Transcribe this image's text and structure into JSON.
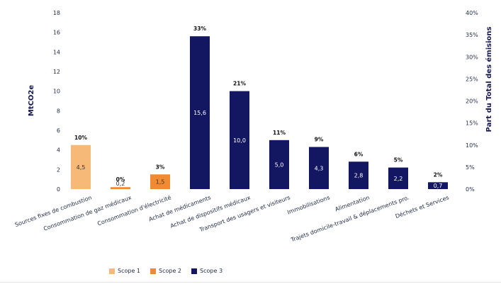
{
  "chart_data": {
    "type": "bar",
    "categories": [
      "Sources fixes de combustion",
      "Consommation de gaz médicaux",
      "Consommation d'électricité",
      "Achat de médicaments",
      "Achat de dispositifs médicaux",
      "Transport des usagers et visiteurs",
      "Immobilisations",
      "Alimentation",
      "Trajets domicile-travail & déplacements pro.",
      "Déchets et Services"
    ],
    "values": [
      4.5,
      0.2,
      1.5,
      15.6,
      10.0,
      5.0,
      4.3,
      2.8,
      2.2,
      0.7
    ],
    "value_labels": [
      "4,5",
      "0,2",
      "1,5",
      "15,6",
      "10,0",
      "5,0",
      "4,3",
      "2,8",
      "2,2",
      "0,7"
    ],
    "percent_labels": [
      "10%",
      "0%",
      "3%",
      "33%",
      "21%",
      "11%",
      "9%",
      "6%",
      "5%",
      "2%"
    ],
    "scopes": [
      "Scope 1",
      "Scope 2",
      "Scope 2",
      "Scope 3",
      "Scope 3",
      "Scope 3",
      "Scope 3",
      "Scope 3",
      "Scope 3",
      "Scope 3"
    ],
    "ylabel": "MtCO2e",
    "y2label": "Part du Total des émisions",
    "ylim": [
      0,
      18
    ],
    "yticks": [
      "0",
      "2",
      "4",
      "6",
      "8",
      "10",
      "12",
      "14",
      "16",
      "18"
    ],
    "y2lim": [
      0,
      40
    ],
    "y2ticks": [
      "0%",
      "5%",
      "10%",
      "15%",
      "20%",
      "25%",
      "30%",
      "35%",
      "40%"
    ],
    "grid": false,
    "legend": {
      "position": "bottom-left",
      "items": [
        {
          "label": "Scope 1",
          "color": "#f7b977"
        },
        {
          "label": "Scope 2",
          "color": "#f28a32"
        },
        {
          "label": "Scope 3",
          "color": "#131660"
        }
      ]
    },
    "colors": {
      "Scope 1": "#f7b977",
      "Scope 2": "#f28a32",
      "Scope 3": "#131660"
    }
  }
}
